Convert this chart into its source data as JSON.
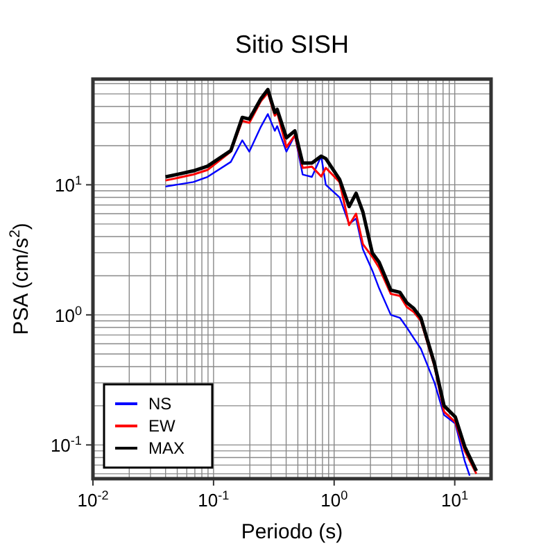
{
  "chart_data": {
    "type": "line",
    "title": "Sitio SISH",
    "xlabel": "Periodo (s)",
    "ylabel": "PSA (cm/s$^{2}$)",
    "log": "xy",
    "grid": true,
    "legend": "bottom left",
    "line_style": "solid",
    "marker": "none",
    "xlim": [
      0.01,
      20
    ],
    "ylim": [
      0.055,
      65
    ],
    "xticks": [
      {
        "value": 0.01,
        "label": "10$^{-2}$"
      },
      {
        "value": 0.1,
        "label": "10$^{-1}$"
      },
      {
        "value": 1,
        "label": "10$^{0}$"
      },
      {
        "value": 10,
        "label": "10$^{1}$"
      }
    ],
    "yticks": [
      {
        "value": 0.1,
        "label": "10$^{-1}$"
      },
      {
        "value": 1,
        "label": "10$^{0}$"
      },
      {
        "value": 10,
        "label": "10$^{1}$"
      }
    ],
    "x": [
      0.04,
      0.068,
      0.089,
      0.139,
      0.173,
      0.198,
      0.247,
      0.282,
      0.322,
      0.337,
      0.402,
      0.472,
      0.548,
      0.654,
      0.781,
      0.853,
      1.11,
      1.33,
      1.52,
      1.73,
      2.07,
      2.36,
      2.95,
      3.51,
      4.0,
      4.58,
      5.23,
      6.8,
      8.15,
      10.1,
      12.1,
      15.1
    ],
    "series": [
      {
        "name": "NS",
        "color": "#0000ff",
        "x": [
          0.04,
          0.068,
          0.089,
          0.139,
          0.173,
          0.198,
          0.247,
          0.282,
          0.322,
          0.337,
          0.402,
          0.472,
          0.548,
          0.654,
          0.781,
          0.853,
          1.11,
          1.33,
          1.52,
          1.73,
          2.07,
          2.36,
          2.95,
          3.51,
          4.0,
          4.58,
          5.23,
          6.8,
          8.15,
          10.1,
          12.1,
          13.3
        ],
        "values": [
          9.7,
          10.5,
          11.5,
          15,
          22,
          18,
          28,
          35,
          26,
          28.3,
          18,
          24,
          12,
          11.5,
          16.6,
          10,
          8.0,
          5.0,
          5.5,
          3.2,
          2.2,
          1.6,
          1.0,
          0.95,
          0.8,
          0.66,
          0.55,
          0.3,
          0.17,
          0.146,
          0.075,
          0.058
        ]
      },
      {
        "name": "EW",
        "color": "#ff0000",
        "values": [
          10.8,
          12.0,
          13.0,
          18.0,
          31,
          30,
          44,
          51,
          34,
          36,
          19.5,
          24,
          13.5,
          13.8,
          11.6,
          13.5,
          10.5,
          4.9,
          6.0,
          3.5,
          2.8,
          2.3,
          1.45,
          1.4,
          1.15,
          1.05,
          0.9,
          0.4,
          0.18,
          0.15,
          0.09,
          0.06
        ]
      },
      {
        "name": "MAX",
        "color": "#000000",
        "values": [
          11.5,
          12.8,
          13.9,
          18.3,
          33,
          32,
          46,
          54,
          36,
          38,
          23,
          26,
          14.7,
          14.7,
          16.6,
          15.9,
          11,
          6.8,
          8.6,
          6.2,
          3.0,
          2.54,
          1.55,
          1.49,
          1.24,
          1.12,
          0.95,
          0.42,
          0.2,
          0.164,
          0.097,
          0.063
        ]
      }
    ]
  }
}
